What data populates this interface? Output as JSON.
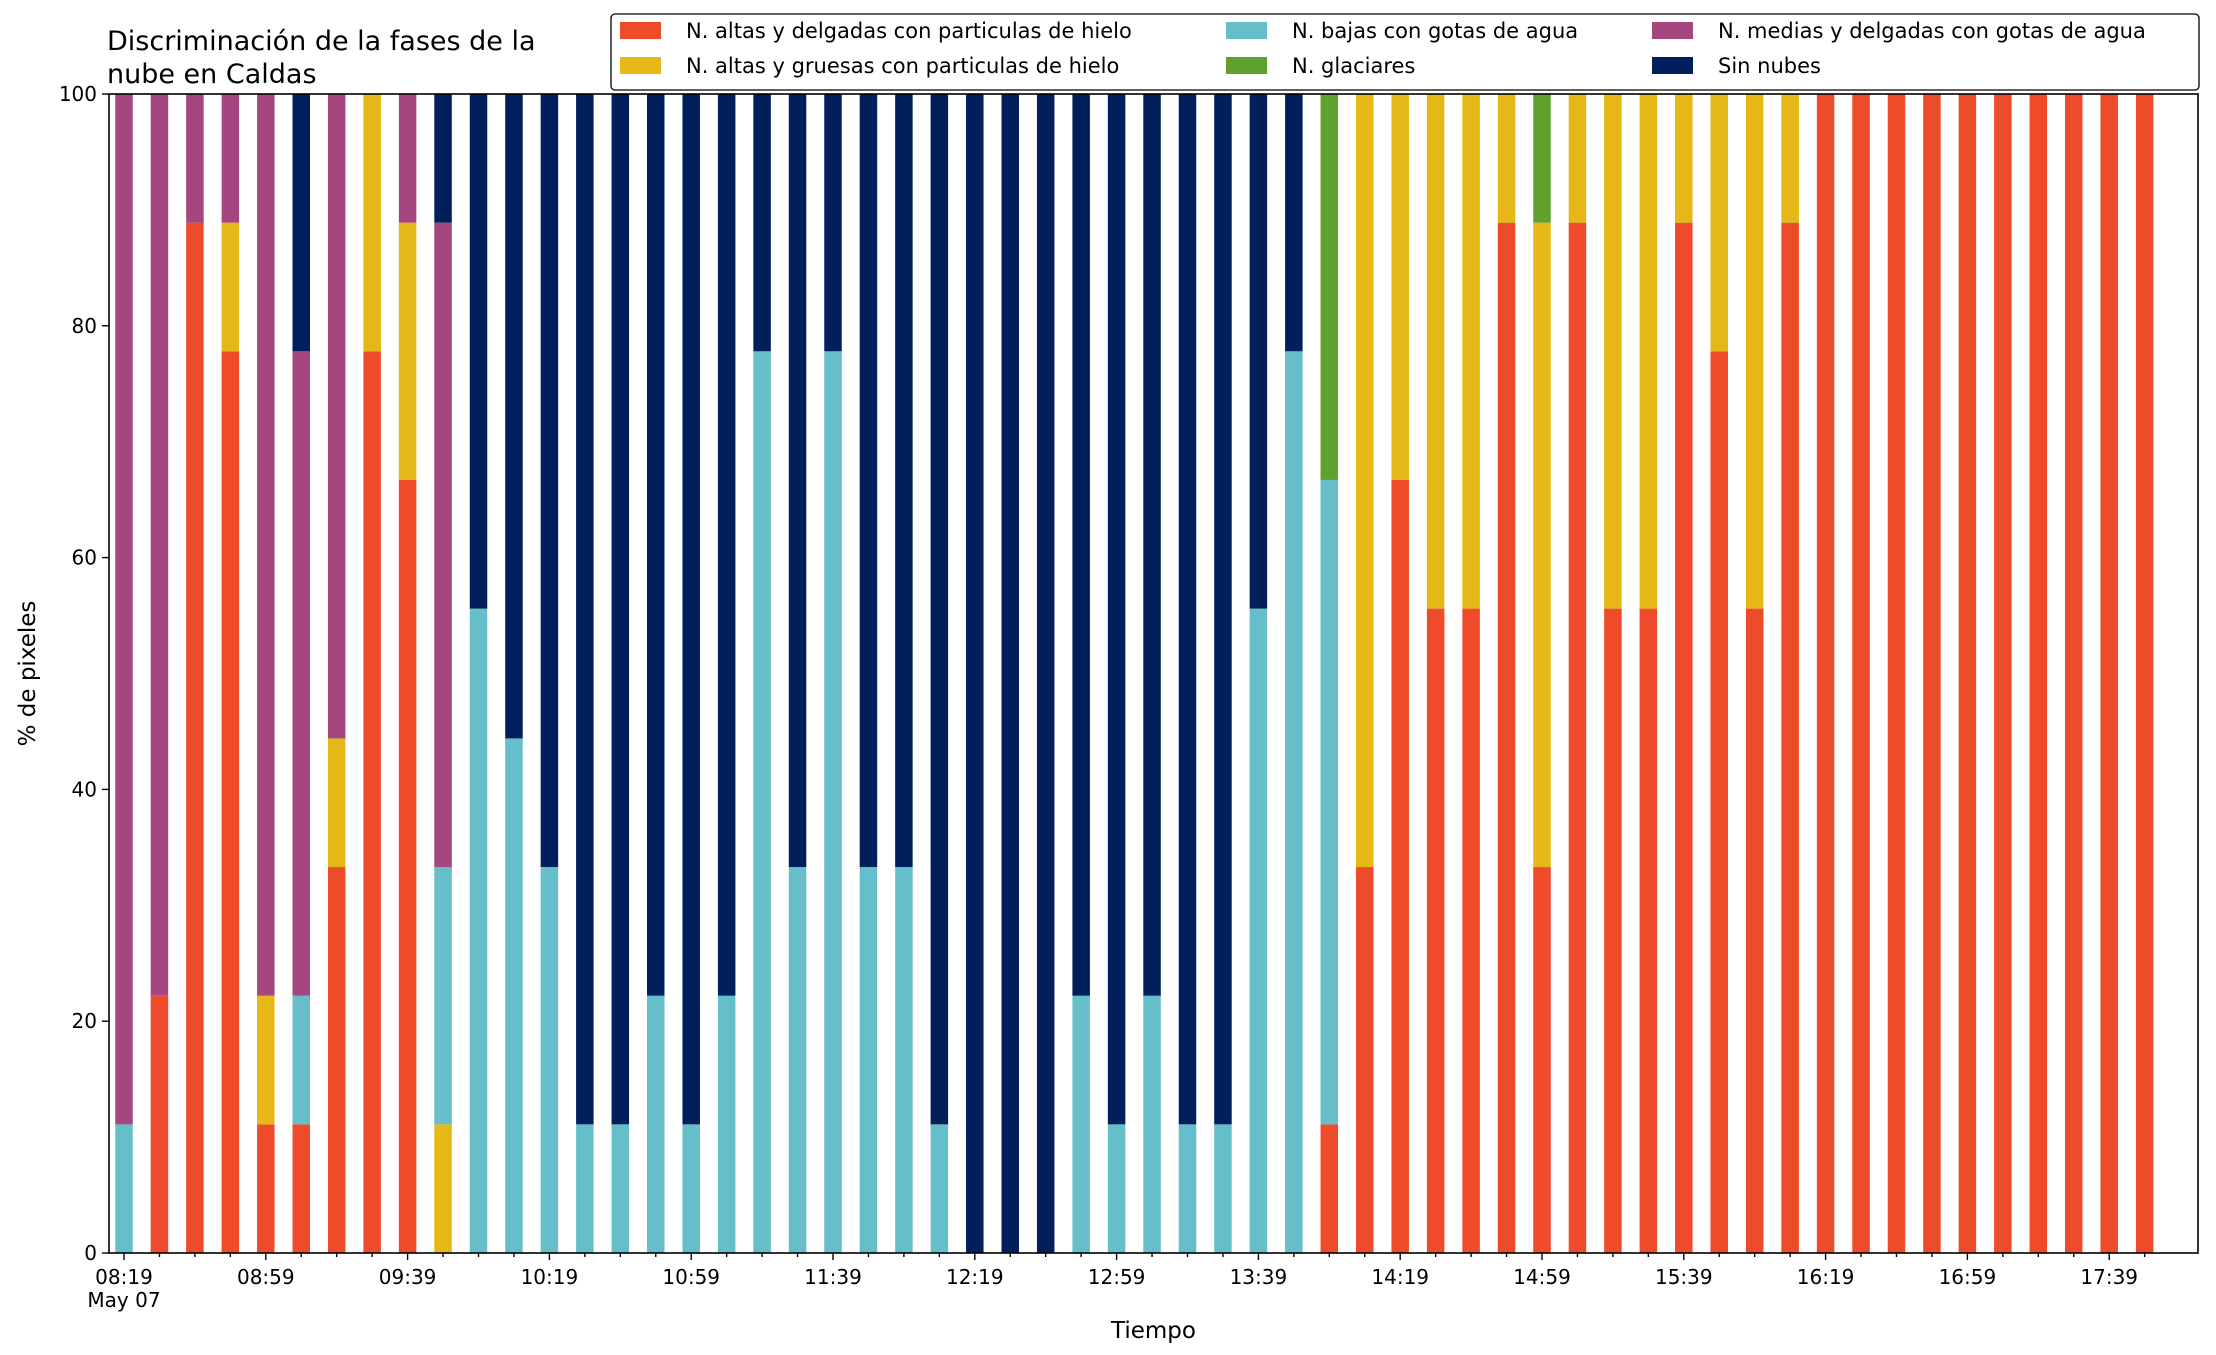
{
  "chart_data": {
    "type": "bar",
    "stacked": true,
    "title": "Discriminación de la fases de la\nnube en Caldas",
    "xlabel": "Tiempo",
    "ylabel": "% de pixeles",
    "ylim": [
      0,
      100
    ],
    "yticks": [
      0,
      20,
      40,
      60,
      80,
      100
    ],
    "grid": false,
    "legend_position": "top-right",
    "xtick_labels": [
      "08:19\nMay 07",
      "08:59",
      "09:39",
      "10:19",
      "10:59",
      "11:39",
      "12:19",
      "12:59",
      "13:39",
      "14:19",
      "14:59",
      "15:39",
      "16:19",
      "16:59",
      "17:39"
    ],
    "categories": [
      "08:19",
      "08:29",
      "08:39",
      "08:49",
      "08:59",
      "09:09",
      "09:19",
      "09:29",
      "09:39",
      "09:49",
      "09:59",
      "10:09",
      "10:19",
      "10:29",
      "10:39",
      "10:49",
      "10:59",
      "11:09",
      "11:19",
      "11:29",
      "11:39",
      "11:49",
      "11:59",
      "12:09",
      "12:19",
      "12:29",
      "12:39",
      "12:49",
      "12:59",
      "13:09",
      "13:19",
      "13:29",
      "13:39",
      "13:49",
      "13:59",
      "14:09",
      "14:19",
      "14:29",
      "14:39",
      "14:49",
      "14:59",
      "15:09",
      "15:19",
      "15:29",
      "15:39",
      "15:49",
      "15:59",
      "16:09",
      "16:19",
      "16:29",
      "16:39",
      "16:49",
      "16:59",
      "17:09",
      "17:19",
      "17:29",
      "17:39",
      "17:49"
    ],
    "series": [
      {
        "name": "N. altas y delgadas con particulas de hielo",
        "color": "#EE4B2B",
        "values": [
          0,
          22.2,
          88.9,
          77.8,
          11.1,
          11.1,
          33.3,
          77.8,
          66.7,
          0,
          0,
          0,
          0,
          0,
          0,
          0,
          0,
          0,
          0,
          0,
          0,
          0,
          0,
          0,
          0,
          0,
          0,
          0,
          0,
          0,
          0,
          0,
          0,
          0,
          11.1,
          33.3,
          66.7,
          55.6,
          55.6,
          88.9,
          33.3,
          88.9,
          55.6,
          55.6,
          88.9,
          77.8,
          55.6,
          88.9,
          100,
          100,
          100,
          100,
          100,
          100,
          100,
          100,
          100,
          100
        ]
      },
      {
        "name": "N. altas y gruesas con particulas de hielo",
        "color": "#E6B817",
        "values": [
          0,
          0,
          0,
          11.1,
          11.1,
          0,
          11.1,
          22.2,
          22.2,
          11.1,
          0,
          0,
          0,
          0,
          0,
          0,
          0,
          0,
          0,
          0,
          0,
          0,
          0,
          0,
          0,
          0,
          0,
          0,
          0,
          0,
          0,
          0,
          0,
          0,
          0,
          66.7,
          33.3,
          44.4,
          44.4,
          11.1,
          55.6,
          11.1,
          44.4,
          44.4,
          11.1,
          22.2,
          44.4,
          11.1,
          0,
          0,
          0,
          0,
          0,
          0,
          0,
          0,
          0,
          0
        ]
      },
      {
        "name": "N. bajas con gotas de agua",
        "color": "#66BECA",
        "values": [
          11.1,
          0,
          0,
          0,
          0,
          11.1,
          0,
          0,
          0,
          22.2,
          55.6,
          44.4,
          33.3,
          11.1,
          11.1,
          22.2,
          11.1,
          22.2,
          77.8,
          33.3,
          77.8,
          33.3,
          33.3,
          11.1,
          0,
          0,
          0,
          22.2,
          11.1,
          22.2,
          11.1,
          11.1,
          55.6,
          77.8,
          55.6,
          0,
          0,
          0,
          0,
          0,
          0,
          0,
          0,
          0,
          0,
          0,
          0,
          0,
          0,
          0,
          0,
          0,
          0,
          0,
          0,
          0,
          0,
          0
        ]
      },
      {
        "name": "N. glaciares",
        "color": "#5FA12E",
        "values": [
          0,
          0,
          0,
          0,
          0,
          0,
          0,
          0,
          0,
          0,
          0,
          0,
          0,
          0,
          0,
          0,
          0,
          0,
          0,
          0,
          0,
          0,
          0,
          0,
          0,
          0,
          0,
          0,
          0,
          0,
          0,
          0,
          0,
          0,
          33.3,
          0,
          0,
          0,
          0,
          0,
          11.1,
          0,
          0,
          0,
          0,
          0,
          0,
          0,
          0,
          0,
          0,
          0,
          0,
          0,
          0,
          0,
          0,
          0
        ]
      },
      {
        "name": "N. medias y delgadas con gotas de agua",
        "color": "#A5467E",
        "values": [
          88.9,
          77.8,
          11.1,
          11.1,
          77.8,
          55.6,
          55.6,
          0,
          11.1,
          55.6,
          0,
          0,
          0,
          0,
          0,
          0,
          0,
          0,
          0,
          0,
          0,
          0,
          0,
          0,
          0,
          0,
          0,
          0,
          0,
          0,
          0,
          0,
          0,
          0,
          0,
          0,
          0,
          0,
          0,
          0,
          0,
          0,
          0,
          0,
          0,
          0,
          0,
          0,
          0,
          0,
          0,
          0,
          0,
          0,
          0,
          0,
          0,
          0
        ]
      },
      {
        "name": "Sin nubes",
        "color": "#001F5B",
        "values": [
          0,
          0,
          0,
          0,
          0,
          22.2,
          0,
          0,
          0,
          11.1,
          44.4,
          55.6,
          66.7,
          88.9,
          88.9,
          77.8,
          88.9,
          77.8,
          22.2,
          66.7,
          22.2,
          66.7,
          66.7,
          88.9,
          100,
          100,
          100,
          77.8,
          88.9,
          77.8,
          88.9,
          88.9,
          44.4,
          22.2,
          0,
          0,
          0,
          0,
          0,
          0,
          0,
          0,
          0,
          0,
          0,
          0,
          0,
          0,
          0,
          0,
          0,
          0,
          0,
          0,
          0,
          0,
          0,
          0
        ]
      }
    ],
    "legend_order": [
      0,
      1,
      2,
      3,
      4,
      5
    ]
  }
}
